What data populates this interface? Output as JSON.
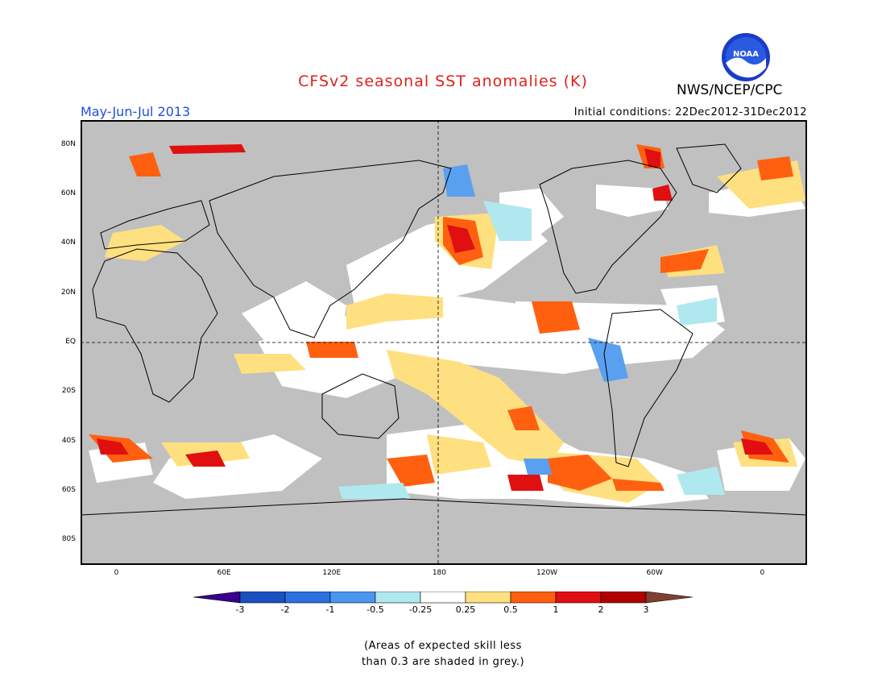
{
  "header": {
    "title": "CFSv2 seasonal SST anomalies (K)",
    "season": "May-Jun-Jul 2013",
    "initial_conditions": "Initial conditions: 22Dec2012-31Dec2012",
    "agency": "NWS/NCEP/CPC",
    "logo_text": "NOAA"
  },
  "map": {
    "lat_labels": [
      "80N",
      "60N",
      "40N",
      "20N",
      "EQ",
      "20S",
      "40S",
      "60S",
      "80S"
    ],
    "lat_values": [
      80,
      60,
      40,
      20,
      0,
      -20,
      -40,
      -60,
      -80
    ],
    "lon_labels": [
      "0",
      "60E",
      "120E",
      "180",
      "120W",
      "60W",
      "0"
    ],
    "lon_values": [
      0,
      60,
      120,
      180,
      240,
      300,
      360
    ],
    "lon_range": [
      -20,
      385
    ],
    "lat_range": [
      -90,
      90
    ],
    "colors": {
      "grey": "#c0c0c0",
      "neutral": "#ffffff",
      "warm_light": "#ffe080",
      "warm_mid": "#ff6010",
      "warm_strong": "#e01010",
      "warm_max": "#b00000",
      "cool_light": "#b0e8f0",
      "cool_mid": "#5aa0f0",
      "cool_strong": "#2060d0"
    }
  },
  "colorbar": {
    "tick_labels": [
      "-3",
      "-2",
      "-1",
      "-0.5",
      "-0.25",
      "0.25",
      "0.5",
      "1",
      "2",
      "3"
    ],
    "colors": [
      "#3a0090",
      "#1a50c0",
      "#2a70e0",
      "#4a96f0",
      "#b0e8f0",
      "#ffffff",
      "#ffe080",
      "#ff6010",
      "#e01010",
      "#b00000",
      "#804030"
    ]
  },
  "footnote": {
    "line1": "(Areas of expected skill less",
    "line2": "than 0.3 are shaded in grey.)"
  }
}
